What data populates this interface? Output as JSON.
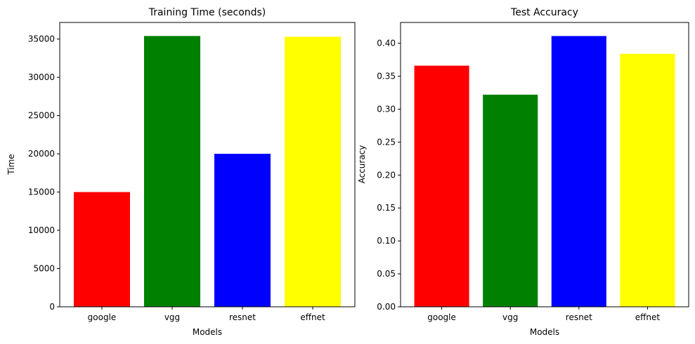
{
  "chart_data": [
    {
      "type": "bar",
      "title": "Training Time (seconds)",
      "xlabel": "Models",
      "ylabel": "Time",
      "categories": [
        "google",
        "vgg",
        "resnet",
        "effnet"
      ],
      "values": [
        15000,
        35400,
        20000,
        35300
      ],
      "colors": [
        "#ff0000",
        "#008000",
        "#0000ff",
        "#ffff00"
      ],
      "ylim": [
        0,
        37170
      ],
      "yticks": [
        0,
        5000,
        10000,
        15000,
        20000,
        25000,
        30000,
        35000
      ],
      "ytick_labels": [
        "0",
        "5000",
        "10000",
        "15000",
        "20000",
        "25000",
        "30000",
        "35000"
      ],
      "grid": false,
      "legend": "none"
    },
    {
      "type": "bar",
      "title": "Test Accuracy",
      "xlabel": "Models",
      "ylabel": "Accuracy",
      "categories": [
        "google",
        "vgg",
        "resnet",
        "effnet"
      ],
      "values": [
        0.366,
        0.322,
        0.411,
        0.384
      ],
      "colors": [
        "#ff0000",
        "#008000",
        "#0000ff",
        "#ffff00"
      ],
      "ylim": [
        0,
        0.4316
      ],
      "yticks": [
        0,
        0.05,
        0.1,
        0.15,
        0.2,
        0.25,
        0.3,
        0.35,
        0.4
      ],
      "ytick_labels": [
        "0.00",
        "0.05",
        "0.10",
        "0.15",
        "0.20",
        "0.25",
        "0.30",
        "0.35",
        "0.40"
      ],
      "grid": false,
      "legend": "none"
    }
  ]
}
